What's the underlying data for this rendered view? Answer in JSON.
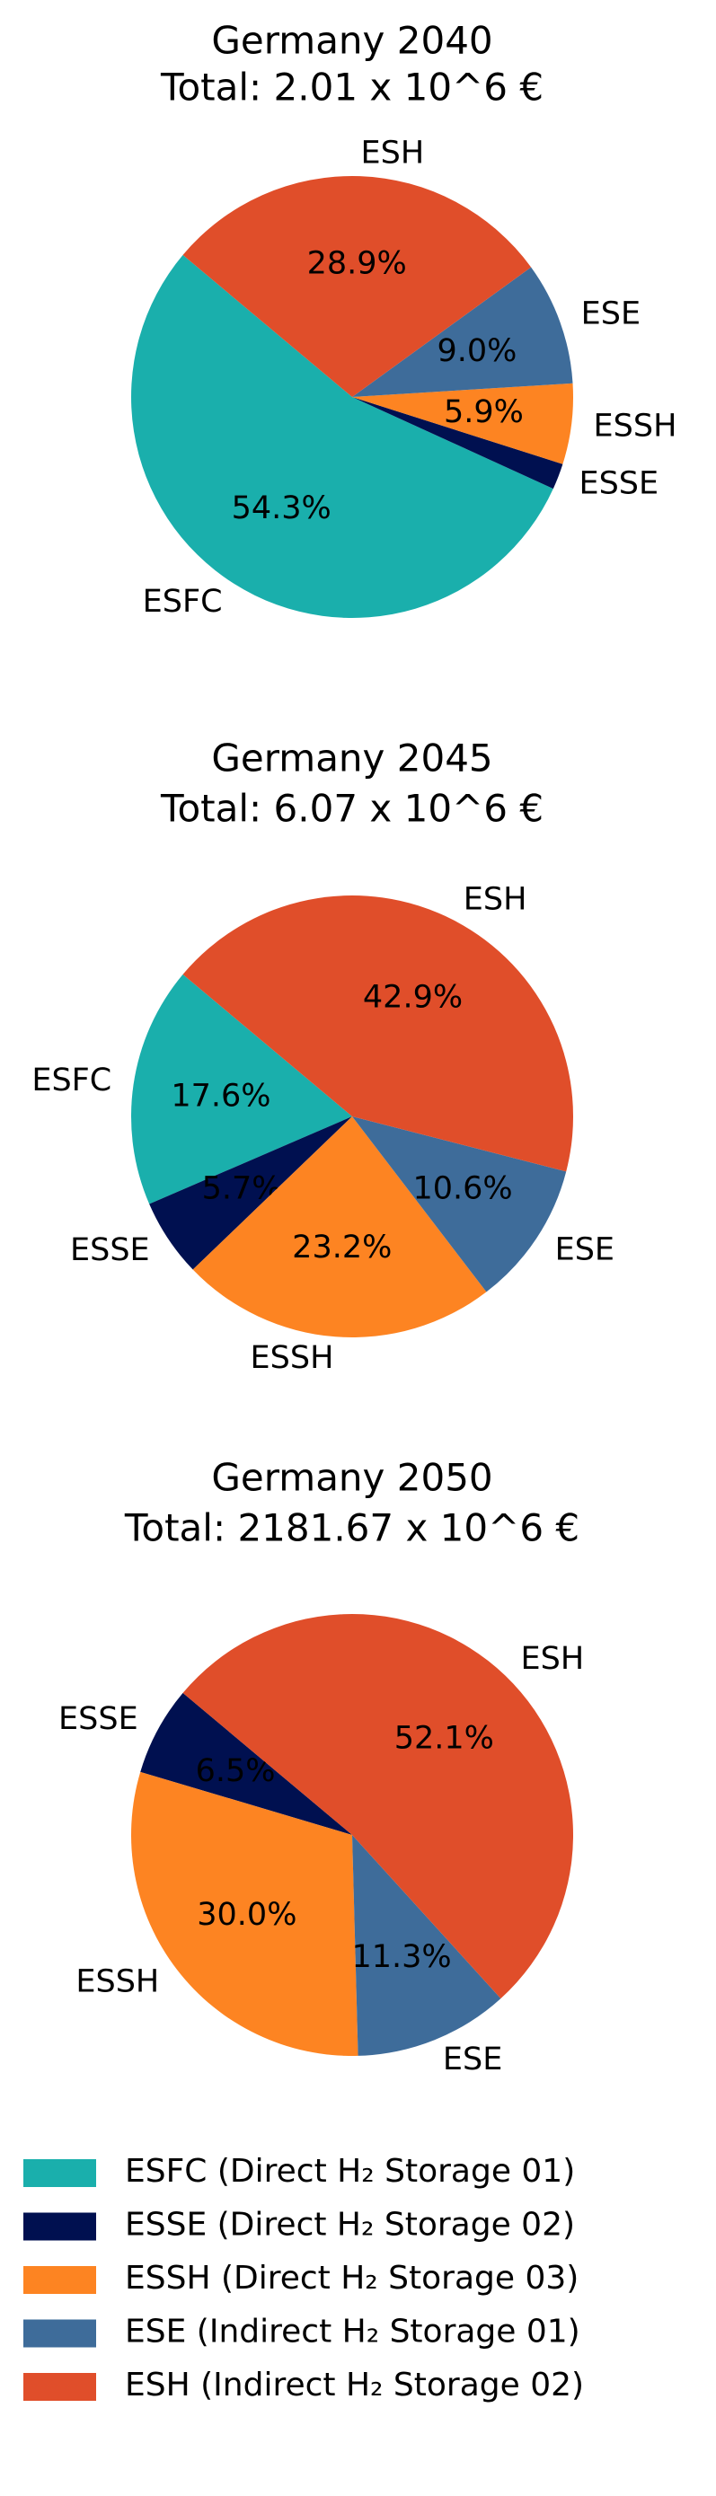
{
  "chart_data": [
    {
      "type": "pie",
      "title": "Germany 2040",
      "subtitle": "Total: 2.01 x 10^6 €",
      "startangle": 140,
      "categories": [
        "ESFC",
        "ESSE",
        "ESSH",
        "ESE",
        "ESH"
      ],
      "values": [
        54.3,
        1.9,
        5.9,
        9.0,
        28.9
      ],
      "value_labels": [
        "54.3%",
        null,
        "5.9%",
        "9.0%",
        "28.9%"
      ],
      "colors": [
        "#1aafac",
        "#001050",
        "#fd8422",
        "#3e6c9a",
        "#e04e2a"
      ]
    },
    {
      "type": "pie",
      "title": "Germany 2045",
      "subtitle": "Total: 6.07 x 10^6 €",
      "startangle": 140,
      "categories": [
        "ESFC",
        "ESSE",
        "ESSH",
        "ESE",
        "ESH"
      ],
      "values": [
        17.6,
        5.7,
        23.2,
        10.6,
        42.9
      ],
      "value_labels": [
        "17.6%",
        "5.7%",
        "23.2%",
        "10.6%",
        "42.9%"
      ],
      "colors": [
        "#1aafac",
        "#001050",
        "#fd8422",
        "#3e6c9a",
        "#e04e2a"
      ]
    },
    {
      "type": "pie",
      "title": "Germany 2050",
      "subtitle": "Total: 2181.67 x 10^6 €",
      "startangle": 140,
      "categories": [
        "ESSE",
        "ESSH",
        "ESE",
        "ESH"
      ],
      "values": [
        6.5,
        30.0,
        11.3,
        52.1
      ],
      "value_labels": [
        "6.5%",
        "30.0%",
        "11.3%",
        "52.1%"
      ],
      "colors": [
        "#001050",
        "#fd8422",
        "#3e6c9a",
        "#e04e2a"
      ]
    }
  ],
  "legend": {
    "entries": [
      {
        "label": "ESFC (Direct H₂ Storage 01)",
        "color": "#1aafac"
      },
      {
        "label": "ESSE (Direct H₂ Storage 02)",
        "color": "#001050"
      },
      {
        "label": "ESSH (Direct H₂ Storage 03)",
        "color": "#fd8422"
      },
      {
        "label": "ESE (Indirect H₂ Storage 01)",
        "color": "#3e6c9a"
      },
      {
        "label": "ESH (Indirect H₂ Storage 02)",
        "color": "#e04e2a"
      }
    ]
  }
}
